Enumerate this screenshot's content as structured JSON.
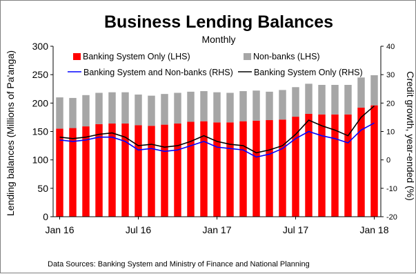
{
  "chart_data": {
    "type": "bar",
    "title": "Business Lending Balances",
    "subtitle": "Monthly",
    "ylabel": "Lending balances (Millions of Pa'anga)",
    "y2label": "Credit growth, year-ended (%)",
    "ylim": [
      0,
      300
    ],
    "yticks": [
      0,
      50,
      100,
      150,
      200,
      250,
      300
    ],
    "y2lim": [
      -20,
      40
    ],
    "y2ticks": [
      -20,
      -10,
      0,
      10,
      20,
      30,
      40
    ],
    "x_tick_labels": [
      "Jan 16",
      "Jul 16",
      "Jan 17",
      "Jul 17",
      "Jan 18"
    ],
    "x_tick_positions": [
      0,
      6,
      12,
      18,
      24
    ],
    "categories": [
      "Jan 16",
      "Feb 16",
      "Mar 16",
      "Apr 16",
      "May 16",
      "Jun 16",
      "Jul 16",
      "Aug 16",
      "Sep 16",
      "Oct 16",
      "Nov 16",
      "Dec 16",
      "Jan 17",
      "Feb 17",
      "Mar 17",
      "Apr 17",
      "May 17",
      "Jun 17",
      "Jul 17",
      "Aug 17",
      "Sep 17",
      "Oct 17",
      "Nov 17",
      "Dec 17",
      "Jan 18"
    ],
    "series": [
      {
        "name": "Banking System Only (LHS)",
        "kind": "bar",
        "axis": "left",
        "color": "#ff0000",
        "values": [
          155,
          156,
          159,
          163,
          164,
          164,
          161,
          160,
          162,
          164,
          167,
          168,
          166,
          166,
          168,
          169,
          170,
          171,
          176,
          181,
          180,
          180,
          180,
          192,
          196
        ]
      },
      {
        "name": "Non-banks (LHS)",
        "kind": "bar",
        "axis": "left",
        "color": "#a6a6a6",
        "values": [
          55,
          53,
          55,
          55,
          55,
          55,
          54,
          53,
          54,
          54,
          53,
          53,
          53,
          52,
          53,
          53,
          50,
          52,
          52,
          53,
          52,
          52,
          52,
          53,
          53
        ]
      },
      {
        "name": "Banking System and Non-banks (RHS)",
        "kind": "line",
        "axis": "right",
        "color": "#0000ff",
        "values": [
          7,
          6.5,
          7,
          8,
          8,
          6.5,
          3.5,
          4,
          3,
          3.5,
          5,
          6.5,
          4.5,
          4,
          3.5,
          1,
          2,
          4,
          7.5,
          10,
          8.5,
          7.5,
          6,
          10.5,
          13
        ]
      },
      {
        "name": "Banking System Only (RHS)",
        "kind": "line",
        "axis": "right",
        "color": "#000000",
        "values": [
          8,
          7.5,
          8,
          9,
          9.5,
          8,
          5,
          5.5,
          4.5,
          5,
          6.5,
          8.5,
          6.5,
          5.5,
          5,
          2.5,
          3.5,
          5,
          9,
          14,
          12,
          10.5,
          8.5,
          15,
          19
        ]
      }
    ],
    "legend_position": "top",
    "grid": false
  },
  "source_note": "Data Sources: Banking System and Ministry of Finance and National Planning"
}
